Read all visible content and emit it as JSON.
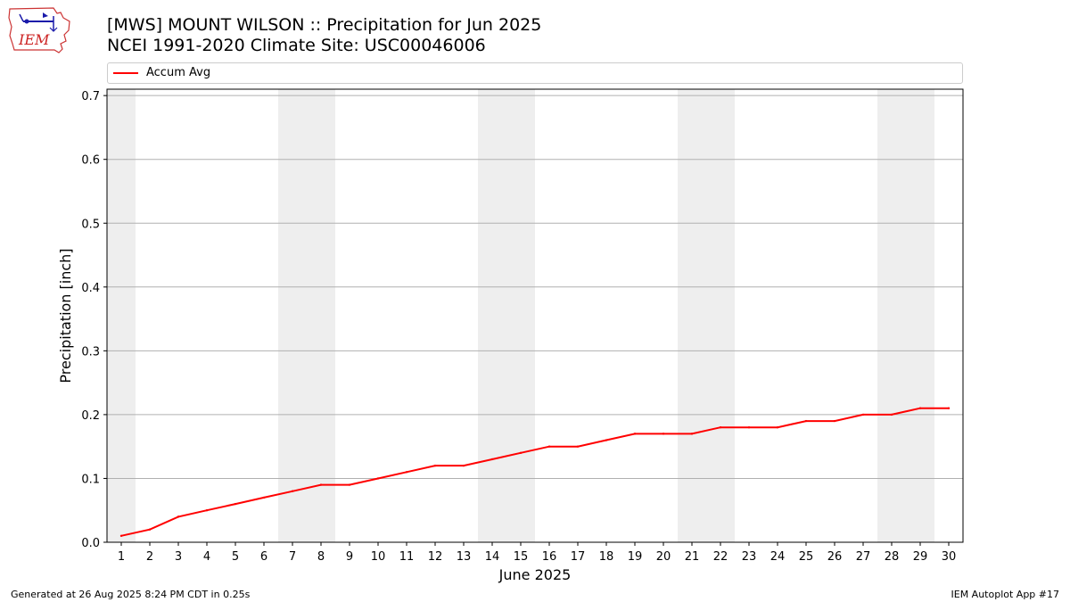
{
  "title": {
    "line1": "[MWS] MOUNT WILSON :: Precipitation for Jun 2025",
    "line2": "NCEI 1991-2020 Climate Site: USC00046006"
  },
  "logo": {
    "text": "IEM",
    "icon": "iem-iowa-logo-icon"
  },
  "colors": {
    "line": "#ff0000",
    "weekend_band": "#eeeeee",
    "grid": "#b0b0b0"
  },
  "chart_data": {
    "type": "line",
    "title": "[MWS] MOUNT WILSON :: Precipitation for Jun 2025",
    "subtitle": "NCEI 1991-2020 Climate Site: USC00046006",
    "xlabel": "June 2025",
    "ylabel": "Precipitation [inch]",
    "x": [
      1,
      2,
      3,
      4,
      5,
      6,
      7,
      8,
      9,
      10,
      11,
      12,
      13,
      14,
      15,
      16,
      17,
      18,
      19,
      20,
      21,
      22,
      23,
      24,
      25,
      26,
      27,
      28,
      29,
      30
    ],
    "x_ticks": [
      "1",
      "2",
      "3",
      "4",
      "5",
      "6",
      "7",
      "8",
      "9",
      "10",
      "11",
      "12",
      "13",
      "14",
      "15",
      "16",
      "17",
      "18",
      "19",
      "20",
      "21",
      "22",
      "23",
      "24",
      "25",
      "26",
      "27",
      "28",
      "29",
      "30"
    ],
    "xlim": [
      0.5,
      30.5
    ],
    "ylim": [
      0,
      0.71
    ],
    "y_ticks": [
      "0.0",
      "0.1",
      "0.2",
      "0.3",
      "0.4",
      "0.5",
      "0.6",
      "0.7"
    ],
    "y_tick_values": [
      0,
      0.1,
      0.2,
      0.3,
      0.4,
      0.5,
      0.6,
      0.7
    ],
    "grid": "horizontal",
    "weekend_days": [
      1,
      7,
      8,
      14,
      15,
      21,
      22,
      28,
      29
    ],
    "legend": {
      "placement": "top",
      "entries": [
        "Accum Avg"
      ]
    },
    "series": [
      {
        "name": "Accum Avg",
        "color": "#ff0000",
        "values": [
          0.01,
          0.02,
          0.04,
          0.05,
          0.06,
          0.07,
          0.08,
          0.09,
          0.09,
          0.1,
          0.11,
          0.12,
          0.12,
          0.13,
          0.14,
          0.15,
          0.15,
          0.16,
          0.17,
          0.17,
          0.17,
          0.18,
          0.18,
          0.18,
          0.19,
          0.19,
          0.2,
          0.2,
          0.21,
          0.21
        ]
      }
    ]
  },
  "footer": {
    "left": "Generated at 26 Aug 2025 8:24 PM CDT in 0.25s",
    "right": "IEM Autoplot App #17"
  }
}
